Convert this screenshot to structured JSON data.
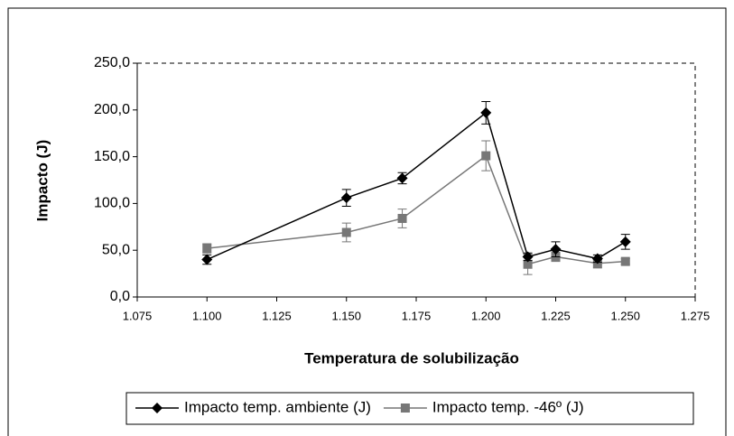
{
  "chart_data": {
    "type": "line",
    "xlabel": "Temperatura de solubilização",
    "ylabel": "Impacto (J)",
    "x": [
      1100,
      1150,
      1170,
      1200,
      1215,
      1225,
      1240,
      1250
    ],
    "series": [
      {
        "name": "Impacto temp. ambiente (J)",
        "color": "#000000",
        "marker": "diamond",
        "values": [
          40,
          106,
          127,
          197,
          43,
          51,
          41,
          59
        ],
        "errors": [
          5,
          9,
          6,
          12,
          4,
          8,
          4,
          8
        ]
      },
      {
        "name": "Impacto temp. -46º (J)",
        "color": "#777777",
        "marker": "square",
        "values": [
          52,
          69,
          84,
          151,
          35,
          43,
          36,
          38
        ],
        "errors": [
          5,
          10,
          10,
          16,
          11,
          5,
          5,
          3
        ]
      }
    ],
    "xlim": [
      1075,
      1275
    ],
    "xticks": [
      {
        "value": 1075,
        "label": "1.075"
      },
      {
        "value": 1100,
        "label": "1.100"
      },
      {
        "value": 1125,
        "label": "1.125"
      },
      {
        "value": 1150,
        "label": "1.150"
      },
      {
        "value": 1175,
        "label": "1.175"
      },
      {
        "value": 1200,
        "label": "1.200"
      },
      {
        "value": 1225,
        "label": "1.225"
      },
      {
        "value": 1250,
        "label": "1.250"
      },
      {
        "value": 1275,
        "label": "1.275"
      }
    ],
    "ylim": [
      0,
      250
    ],
    "yticks": [
      {
        "value": 0,
        "label": "0,0"
      },
      {
        "value": 50,
        "label": "50,0"
      },
      {
        "value": 100,
        "label": "100,0"
      },
      {
        "value": 150,
        "label": "150,0"
      },
      {
        "value": 200,
        "label": "200,0"
      },
      {
        "value": 250,
        "label": "250,0"
      }
    ],
    "grid": false,
    "legend": "bottom"
  }
}
